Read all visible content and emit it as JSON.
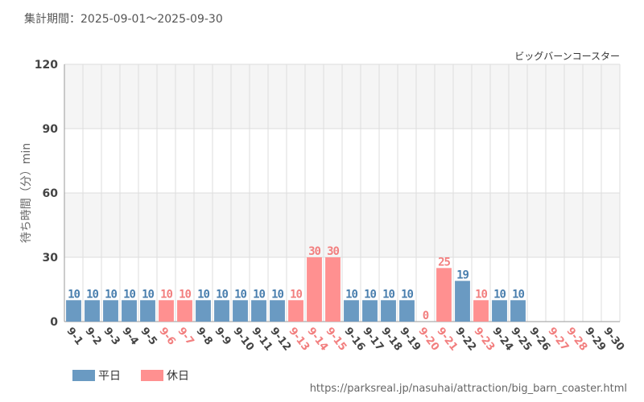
{
  "period_label": "集計期間：2025-09-01〜2025-09-30",
  "source_url": "https://parksreal.jp/nasuhai/attraction/big_barn_coaster.html",
  "colors": {
    "weekday": "#6a9ac2",
    "weekday_text": "#4a7fae",
    "holiday": "#ff9090",
    "holiday_text": "#f27f7f",
    "band": "#f5f5f5",
    "grid": "#dddddd",
    "axis": "#999999"
  },
  "chart_data": {
    "type": "bar",
    "title": "ビッグバーンコースター",
    "xlabel": "",
    "ylabel": "待ち時間（分）min",
    "ylim": [
      0,
      120
    ],
    "yticks": [
      0,
      30,
      60,
      90,
      120
    ],
    "grid": true,
    "legend_position": "bottom-left",
    "categories": [
      "9-1",
      "9-2",
      "9-3",
      "9-4",
      "9-5",
      "9-6",
      "9-7",
      "9-8",
      "9-9",
      "9-10",
      "9-11",
      "9-12",
      "9-13",
      "9-14",
      "9-15",
      "9-16",
      "9-17",
      "9-18",
      "9-19",
      "9-20",
      "9-21",
      "9-22",
      "9-23",
      "9-24",
      "9-25",
      "9-26",
      "9-27",
      "9-28",
      "9-29",
      "9-30"
    ],
    "values": [
      10,
      10,
      10,
      10,
      10,
      10,
      10,
      10,
      10,
      10,
      10,
      10,
      10,
      30,
      30,
      10,
      10,
      10,
      10,
      0,
      25,
      19,
      10,
      10,
      10,
      null,
      null,
      null,
      null,
      null
    ],
    "day_type": [
      "weekday",
      "weekday",
      "weekday",
      "weekday",
      "weekday",
      "holiday",
      "holiday",
      "weekday",
      "weekday",
      "weekday",
      "weekday",
      "weekday",
      "holiday",
      "holiday",
      "holiday",
      "weekday",
      "weekday",
      "weekday",
      "weekday",
      "holiday",
      "holiday",
      "weekday",
      "holiday",
      "weekday",
      "weekday",
      "weekday",
      "holiday",
      "holiday",
      "weekday",
      "weekday"
    ],
    "series": [
      {
        "name": "平日",
        "key": "weekday"
      },
      {
        "name": "休日",
        "key": "holiday"
      }
    ]
  }
}
